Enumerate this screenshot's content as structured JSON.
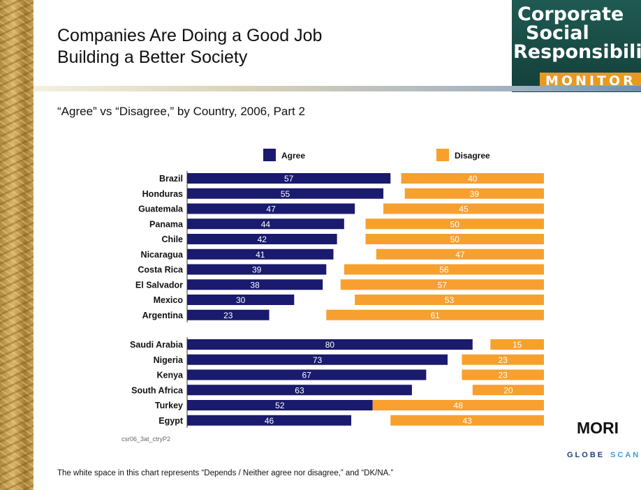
{
  "slide": {
    "title_line1": "Companies Are Doing a Good Job",
    "title_line2": "Building a Better Society",
    "subtitle": "“Agree” vs “Disagree,” by Country, 2006, Part 2",
    "chart_code": "csr06_3at_ctryP2",
    "footnote": "The white space in this chart represents “Depends / Neither agree nor disagree,” and “DK/NA.”"
  },
  "logo": {
    "line1": "Corporate",
    "line2": "Social",
    "line3": "Responsibility",
    "line4": "MONITOR",
    "colors": {
      "panel": "#1f5a52",
      "band": "#e89a1e"
    }
  },
  "branding": {
    "mori": "MORI",
    "globescan_part1": "GLOBE",
    "globescan_part2": "SCAN"
  },
  "chart_data": {
    "type": "bar",
    "orientation": "horizontal",
    "stacked": "diverging",
    "legend_position": "top",
    "categories": [
      "Brazil",
      "Honduras",
      "Guatemala",
      "Panama",
      "Chile",
      "Nicaragua",
      "Costa Rica",
      "El Salvador",
      "Mexico",
      "Argentina",
      "Saudi Arabia",
      "Nigeria",
      "Kenya",
      "South Africa",
      "Turkey",
      "Egypt"
    ],
    "groups": [
      [
        "Brazil",
        "Honduras",
        "Guatemala",
        "Panama",
        "Chile",
        "Nicaragua",
        "Costa Rica",
        "El Salvador",
        "Mexico",
        "Argentina"
      ],
      [
        "Saudi Arabia",
        "Nigeria",
        "Kenya",
        "South Africa",
        "Turkey",
        "Egypt"
      ]
    ],
    "series": [
      {
        "name": "Agree",
        "color": "#1a1a6e",
        "values": [
          57,
          55,
          47,
          44,
          42,
          41,
          39,
          38,
          30,
          23,
          80,
          73,
          67,
          63,
          52,
          46
        ]
      },
      {
        "name": "Disagree",
        "color": "#f7a030",
        "values": [
          40,
          39,
          45,
          50,
          50,
          47,
          56,
          57,
          53,
          61,
          15,
          23,
          23,
          20,
          48,
          43
        ]
      }
    ],
    "xlim": [
      0,
      100
    ],
    "grid": false
  }
}
